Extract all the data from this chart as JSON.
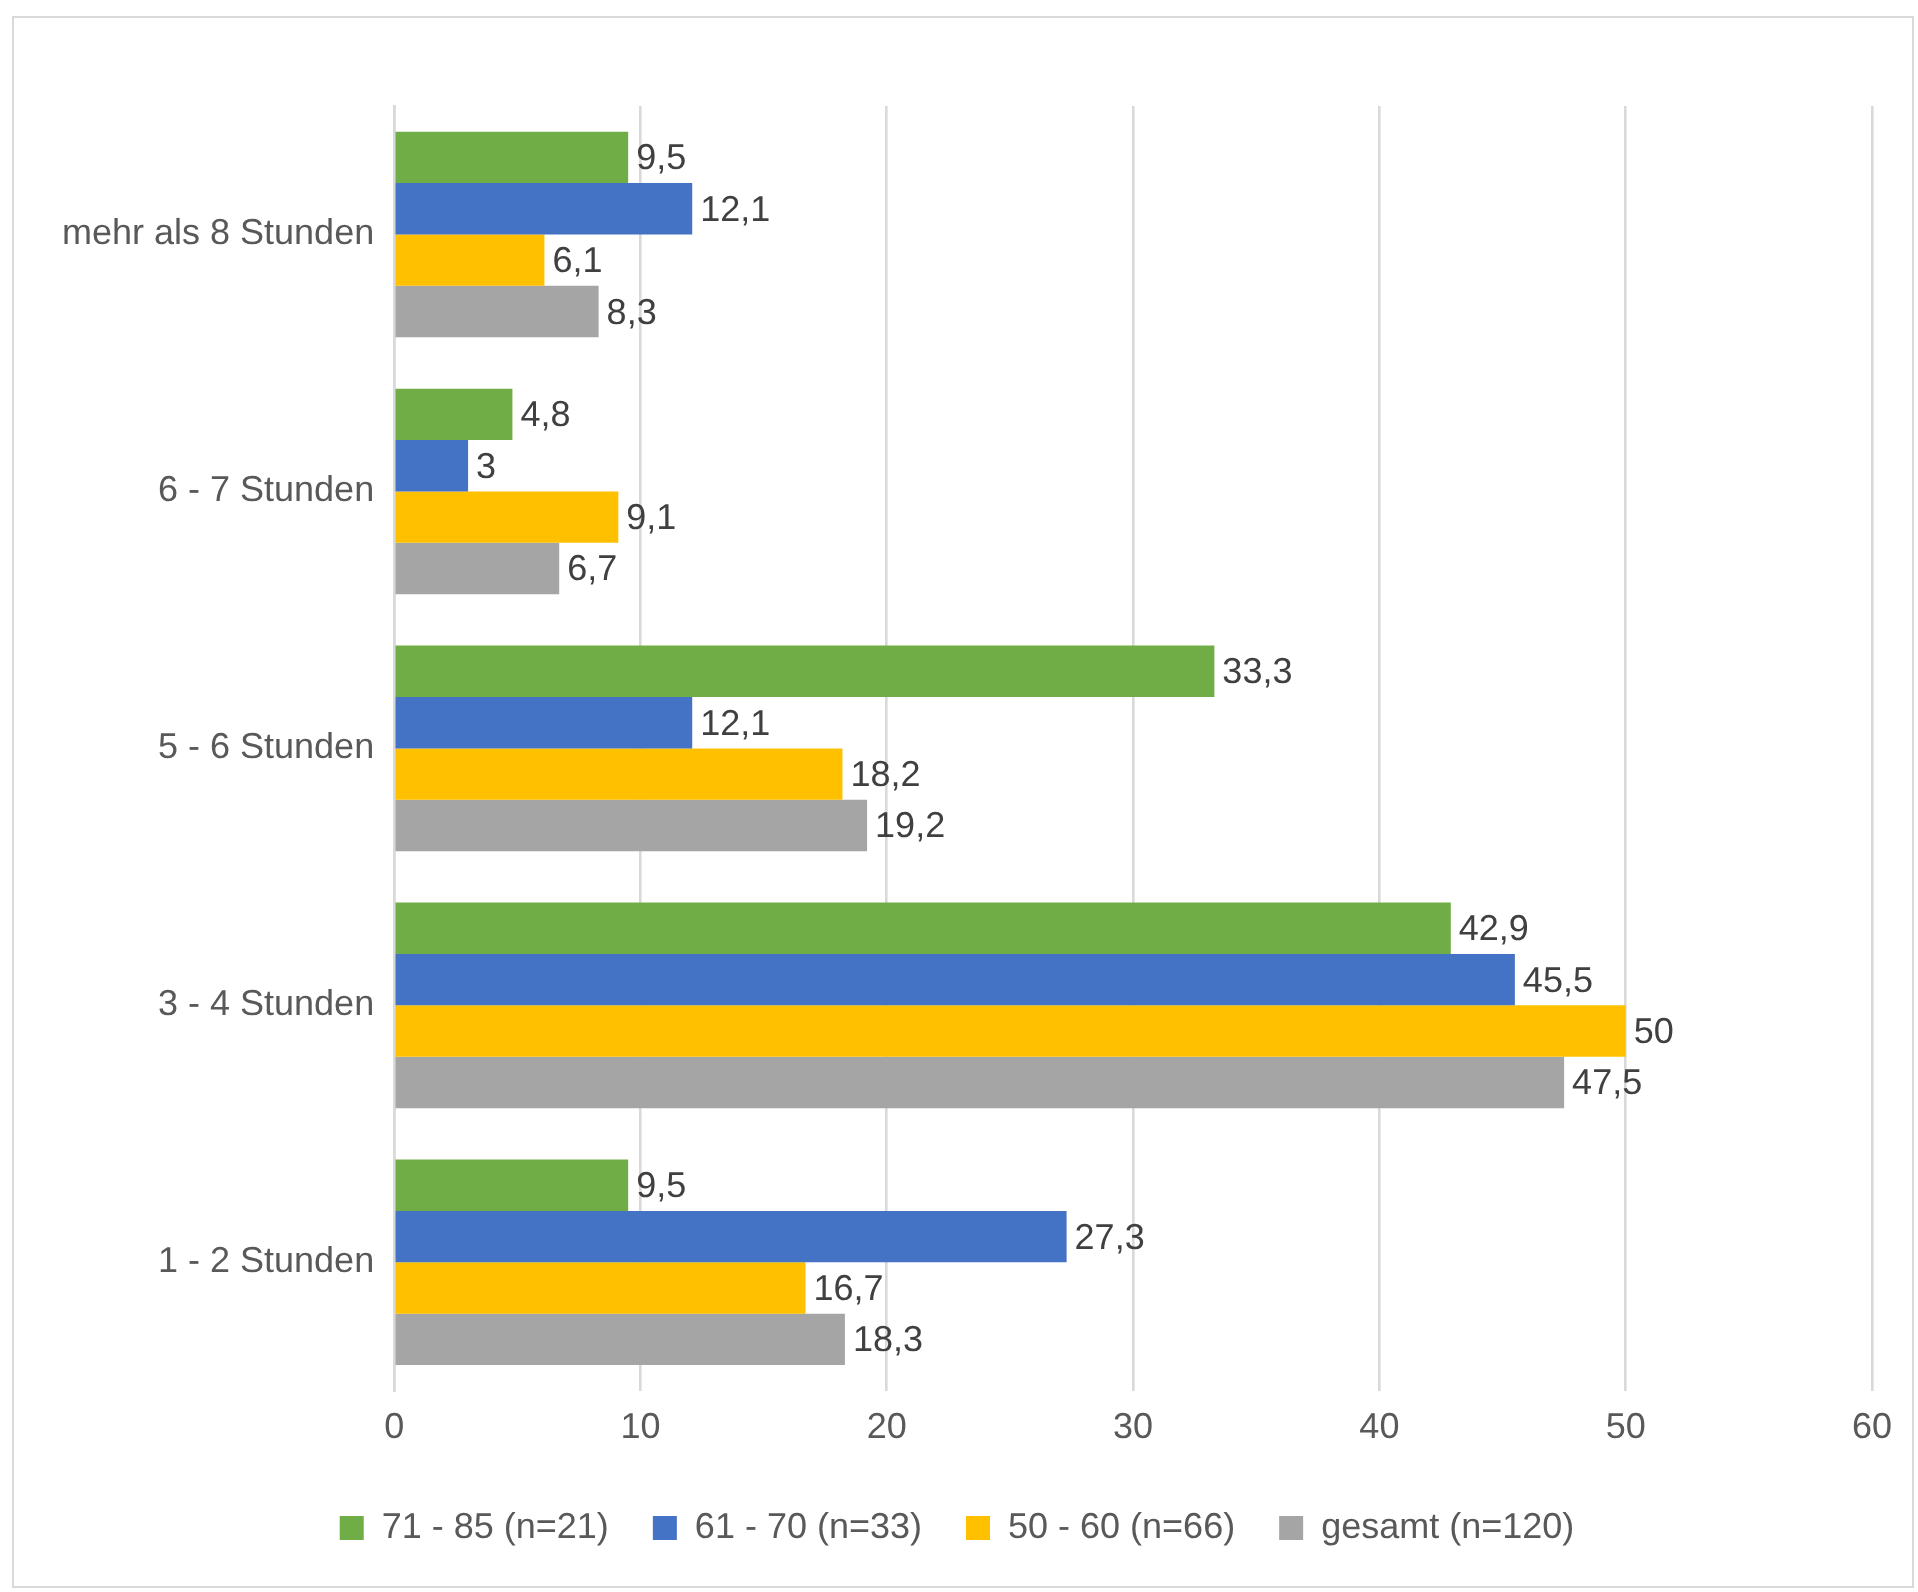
{
  "chart_data": {
    "type": "bar",
    "orientation": "horizontal",
    "categories": [
      "mehr als 8 Stunden",
      "6 - 7 Stunden",
      "5 - 6 Stunden",
      "3 - 4 Stunden",
      "1 - 2 Stunden"
    ],
    "series": [
      {
        "name": "71 - 85 (n=21)",
        "color": "#70ad47",
        "values": [
          9.5,
          4.8,
          33.3,
          42.9,
          9.5
        ],
        "value_labels": [
          "9,5",
          "4,8",
          "33,3",
          "42,9",
          "9,5"
        ]
      },
      {
        "name": "61 - 70 (n=33)",
        "color": "#4472c4",
        "values": [
          12.1,
          3,
          12.1,
          45.5,
          27.3
        ],
        "value_labels": [
          "12,1",
          "3",
          "12,1",
          "45,5",
          "27,3"
        ]
      },
      {
        "name": "50 - 60 (n=66)",
        "color": "#ffc000",
        "values": [
          6.1,
          9.1,
          18.2,
          50,
          16.7
        ],
        "value_labels": [
          "6,1",
          "9,1",
          "18,2",
          "50",
          "16,7"
        ]
      },
      {
        "name": "gesamt (n=120)",
        "color": "#a5a5a5",
        "values": [
          8.3,
          6.7,
          19.2,
          47.5,
          18.3
        ],
        "value_labels": [
          "8,3",
          "6,7",
          "19,2",
          "47,5",
          "18,3"
        ]
      }
    ],
    "xlim": [
      0,
      60
    ],
    "xticks": [
      0,
      10,
      20,
      30,
      40,
      50,
      60
    ],
    "grid": "x",
    "legend": "bottom"
  }
}
